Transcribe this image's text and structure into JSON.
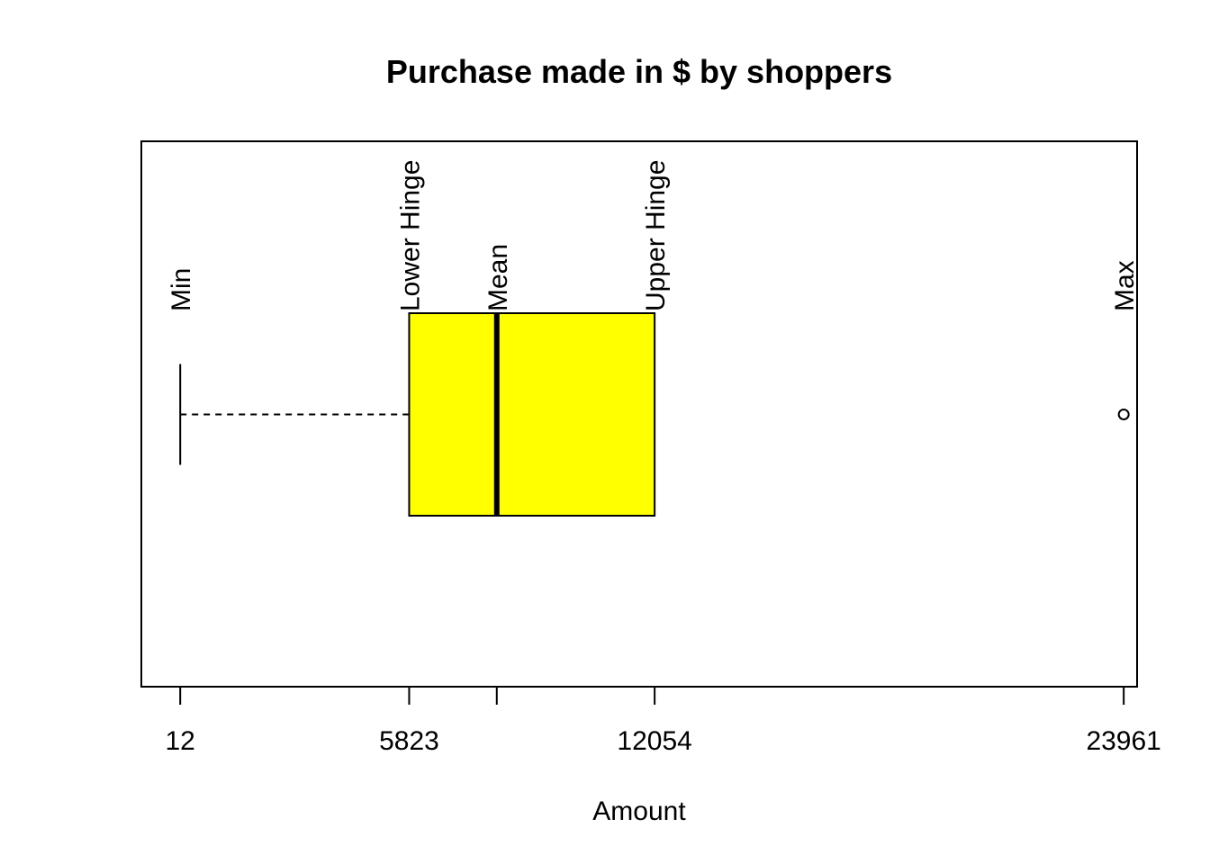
{
  "chart_data": {
    "type": "boxplot",
    "orientation": "horizontal",
    "title": "Purchase made in $ by shoppers",
    "xlabel": "Amount",
    "xlim": [
      -975,
      24300
    ],
    "grid": false,
    "stats": {
      "min": 12,
      "lower_hinge": 5823,
      "mean": 8047,
      "upper_hinge": 12054,
      "max": 23961
    },
    "whisker_low": 12,
    "outliers": [
      23961
    ],
    "tick_values": [
      12,
      5823,
      8047,
      12054,
      23961
    ],
    "tick_labels": [
      "12",
      "5823",
      "",
      "12054",
      "23961"
    ],
    "annotations": [
      {
        "label": "Min",
        "value": 12
      },
      {
        "label": "Lower Hinge",
        "value": 5823
      },
      {
        "label": "Mean",
        "value": 8047
      },
      {
        "label": "Upper Hinge",
        "value": 12054
      },
      {
        "label": "Max",
        "value": 23961
      }
    ],
    "colors": {
      "box_fill": "#ffff00",
      "stroke": "#000000"
    }
  }
}
